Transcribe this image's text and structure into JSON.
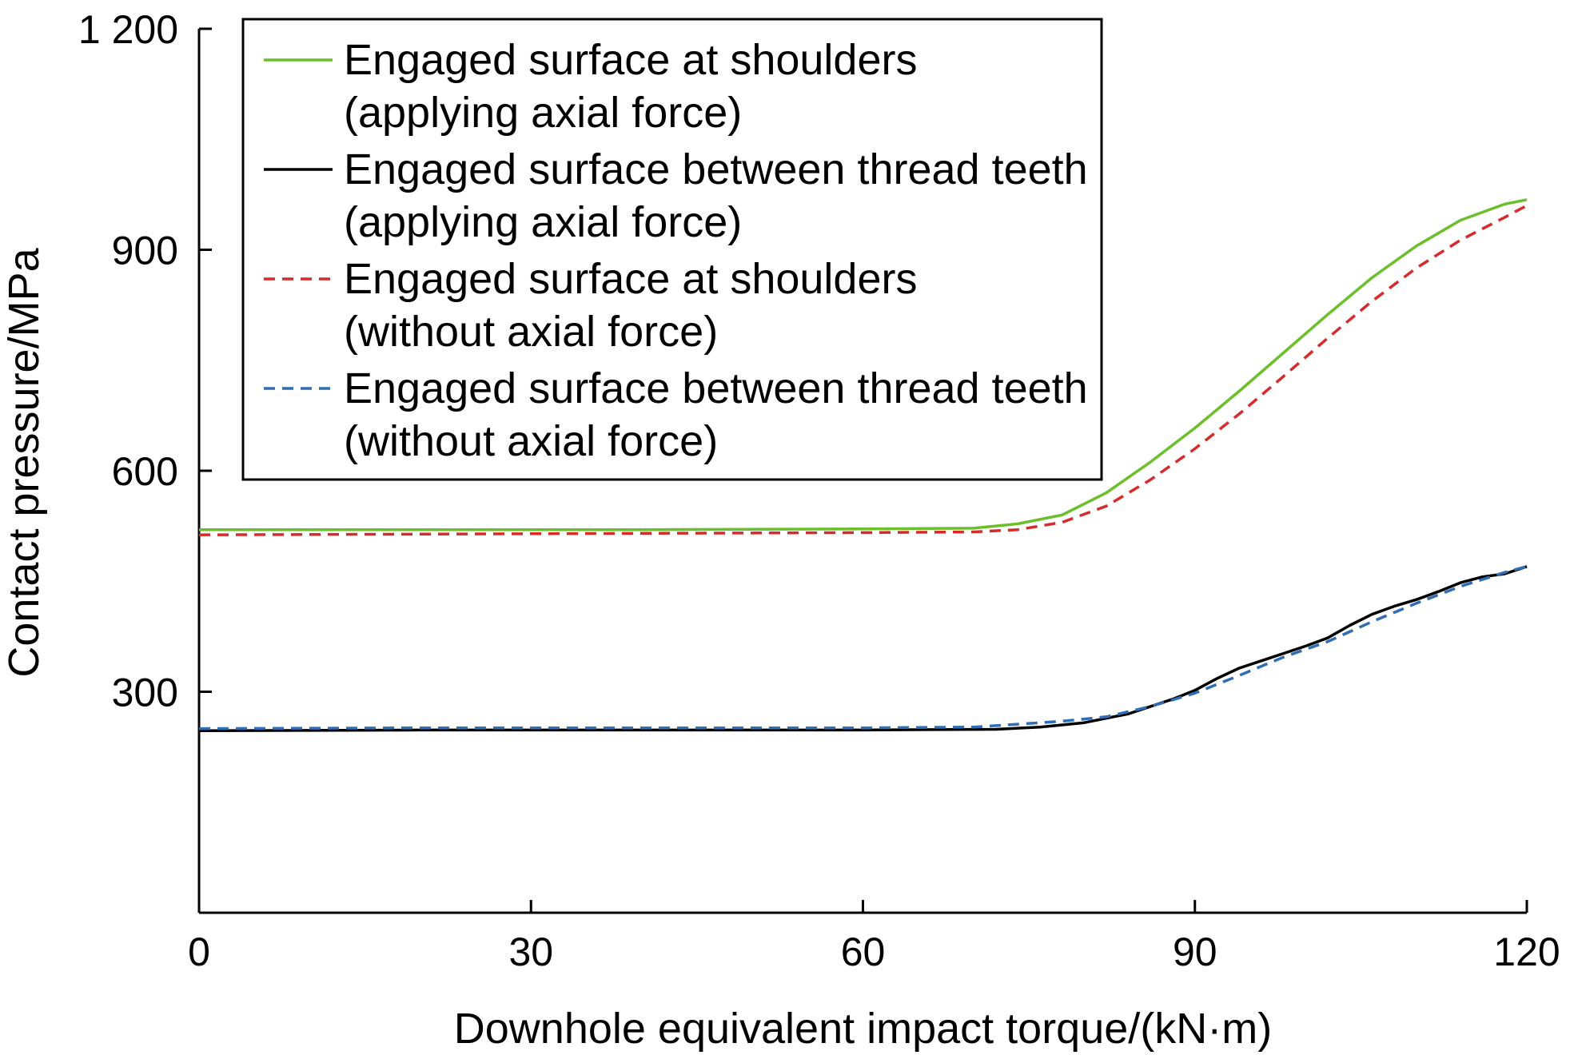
{
  "chart_data": {
    "type": "line",
    "xlabel": "Downhole equivalent impact torque/(kN·m)",
    "ylabel": "Contact pressure/MPa",
    "xlim": [
      0,
      120
    ],
    "ylim": [
      0,
      1200
    ],
    "x_ticks": [
      0,
      30,
      60,
      90,
      120
    ],
    "x_tick_labels": [
      "0",
      "30",
      "60",
      "90",
      "120"
    ],
    "y_ticks": [
      300,
      600,
      900,
      1200
    ],
    "y_tick_labels": [
      "300",
      "600",
      "900",
      "1 200"
    ],
    "grid": false,
    "legend_position": "top-left",
    "series": [
      {
        "name": "Engaged surface at shoulders (applying axial force)",
        "legend_lines": [
          "Engaged surface at shoulders",
          "(applying axial force)"
        ],
        "color": "#6bbf2a",
        "dash": "solid",
        "x": [
          0,
          20,
          40,
          60,
          70,
          74,
          78,
          82,
          86,
          90,
          94,
          98,
          102,
          106,
          110,
          114,
          118,
          120
        ],
        "y": [
          520,
          520,
          520,
          521,
          522,
          528,
          540,
          570,
          612,
          658,
          708,
          760,
          812,
          862,
          905,
          940,
          962,
          968
        ]
      },
      {
        "name": "Engaged surface between thread teeth (applying axial force)",
        "legend_lines": [
          "Engaged surface between thread teeth",
          "(applying axial force)"
        ],
        "color": "#000000",
        "dash": "solid",
        "x": [
          0,
          20,
          40,
          60,
          72,
          76,
          80,
          84,
          88,
          90,
          92,
          94,
          96,
          98,
          100,
          102,
          104,
          106,
          108,
          110,
          112,
          114,
          116,
          118,
          120
        ],
        "y": [
          247,
          248,
          248,
          248,
          249,
          252,
          258,
          270,
          290,
          302,
          318,
          332,
          342,
          352,
          362,
          373,
          390,
          405,
          416,
          425,
          436,
          448,
          456,
          460,
          470
        ]
      },
      {
        "name": "Engaged surface at shoulders (without axial force)",
        "legend_lines": [
          "Engaged surface at shoulders",
          "(without axial force)"
        ],
        "color": "#d62b2b",
        "dash": "dashed",
        "x": [
          0,
          20,
          40,
          60,
          70,
          74,
          78,
          82,
          86,
          90,
          94,
          98,
          102,
          106,
          110,
          114,
          118,
          120
        ],
        "y": [
          513,
          514,
          515,
          516,
          517,
          520,
          530,
          552,
          588,
          630,
          677,
          728,
          780,
          830,
          875,
          913,
          944,
          960
        ]
      },
      {
        "name": "Engaged surface between thread teeth (without axial force)",
        "legend_lines": [
          "Engaged surface between thread teeth",
          "(without axial force)"
        ],
        "color": "#2f6db5",
        "dash": "dashed",
        "x": [
          0,
          20,
          40,
          60,
          70,
          74,
          78,
          82,
          86,
          90,
          94,
          98,
          102,
          106,
          110,
          114,
          118,
          120
        ],
        "y": [
          250,
          251,
          251,
          251,
          252,
          256,
          260,
          266,
          280,
          298,
          322,
          347,
          368,
          395,
          420,
          443,
          462,
          470
        ]
      }
    ]
  }
}
